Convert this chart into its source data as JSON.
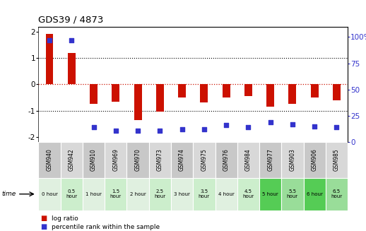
{
  "title": "GDS39 / 4873",
  "samples": [
    "GSM940",
    "GSM942",
    "GSM910",
    "GSM969",
    "GSM970",
    "GSM973",
    "GSM974",
    "GSM975",
    "GSM976",
    "GSM984",
    "GSM977",
    "GSM903",
    "GSM906",
    "GSM985"
  ],
  "time_labels": [
    "0 hour",
    "0.5\nhour",
    "1 hour",
    "1.5\nhour",
    "2 hour",
    "2.5\nhour",
    "3 hour",
    "3.5\nhour",
    "4 hour",
    "4.5\nhour",
    "5 hour",
    "5.5\nhour",
    "6 hour",
    "6.5\nhour"
  ],
  "log_ratio": [
    1.93,
    1.2,
    -0.75,
    -0.65,
    -1.35,
    -1.05,
    -0.5,
    -0.7,
    -0.5,
    -0.45,
    -0.85,
    -0.75,
    -0.5,
    -0.6
  ],
  "percentile": [
    97,
    97,
    14,
    11,
    11,
    11,
    12,
    12,
    16,
    14,
    19,
    17,
    15,
    14
  ],
  "ylim": [
    -2.2,
    2.2
  ],
  "right_ylim": [
    0,
    110
  ],
  "right_yticks": [
    0,
    25,
    50,
    75,
    100
  ],
  "right_yticklabels": [
    "0",
    "25",
    "50",
    "75",
    "100%"
  ],
  "bar_color": "#cc1100",
  "dot_color": "#3333cc",
  "hline_color": "#cc1100",
  "sample_bg": "#c8c8c8",
  "bar_width": 0.35,
  "left_yticks": [
    -2,
    -1,
    0,
    1,
    2
  ],
  "time_color_list": [
    "#e0f0e0",
    "#cceecc",
    "#e0f0e0",
    "#cceecc",
    "#e0f0e0",
    "#cceecc",
    "#e0f0e0",
    "#cceecc",
    "#e0f0e0",
    "#cceecc",
    "#55cc55",
    "#99dd99",
    "#55cc55",
    "#99dd99"
  ],
  "legend_items": [
    {
      "color": "#cc1100",
      "label": "log ratio"
    },
    {
      "color": "#3333cc",
      "label": "percentile rank within the sample"
    }
  ]
}
